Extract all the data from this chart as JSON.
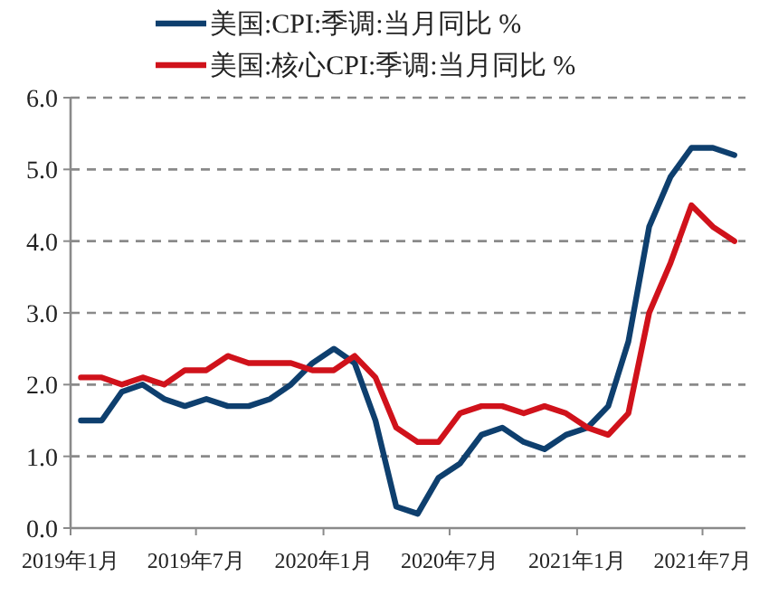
{
  "chart_data": {
    "type": "line",
    "x": [
      "2019-01-16",
      "2019-02-15",
      "2019-03-16",
      "2019-04-15",
      "2019-05-16",
      "2019-06-15",
      "2019-07-16",
      "2019-08-16",
      "2019-09-15",
      "2019-10-16",
      "2019-11-15",
      "2019-12-16",
      "2020-01-16",
      "2020-02-15",
      "2020-03-16",
      "2020-04-15",
      "2020-05-16",
      "2020-06-15",
      "2020-07-16",
      "2020-08-16",
      "2020-09-15",
      "2020-10-16",
      "2020-11-15",
      "2020-12-16",
      "2021-01-16",
      "2021-02-15",
      "2021-03-16",
      "2021-04-15",
      "2021-05-16",
      "2021-06-15",
      "2021-07-16",
      "2021-08-16"
    ],
    "series": [
      {
        "name": "美国:CPI:季调:当月同比 %",
        "color": "#0e3f6e",
        "values": [
          1.5,
          1.5,
          1.9,
          2.0,
          1.8,
          1.7,
          1.8,
          1.7,
          1.7,
          1.8,
          2.0,
          2.3,
          2.5,
          2.3,
          1.5,
          0.3,
          0.2,
          0.7,
          0.9,
          1.3,
          1.4,
          1.2,
          1.1,
          1.3,
          1.4,
          1.7,
          2.6,
          4.2,
          4.9,
          5.3,
          5.3,
          5.2
        ]
      },
      {
        "name": "美国:核心CPI:季调:当月同比 %",
        "color": "#d0121b",
        "values": [
          2.1,
          2.1,
          2.0,
          2.1,
          2.0,
          2.2,
          2.2,
          2.4,
          2.3,
          2.3,
          2.3,
          2.2,
          2.2,
          2.4,
          2.1,
          1.4,
          1.2,
          1.2,
          1.6,
          1.7,
          1.7,
          1.6,
          1.7,
          1.6,
          1.4,
          1.3,
          1.6,
          3.0,
          3.7,
          4.5,
          4.2,
          4.0
        ]
      }
    ],
    "xlim": [
      "2019-01-01",
      "2021-09-01"
    ],
    "xticks": [
      {
        "value": "2019-01-01",
        "label": "2019年1月"
      },
      {
        "value": "2019-07-01",
        "label": "2019年7月"
      },
      {
        "value": "2020-01-01",
        "label": "2020年1月"
      },
      {
        "value": "2020-07-01",
        "label": "2020年7月"
      },
      {
        "value": "2021-01-01",
        "label": "2021年1月"
      },
      {
        "value": "2021-07-01",
        "label": "2021年7月"
      }
    ],
    "ylim": [
      0,
      6
    ],
    "yticks": [
      {
        "value": 0,
        "label": "0.0"
      },
      {
        "value": 1,
        "label": "1.0"
      },
      {
        "value": 2,
        "label": "2.0"
      },
      {
        "value": 3,
        "label": "3.0"
      },
      {
        "value": 4,
        "label": "4.0"
      },
      {
        "value": 5,
        "label": "5.0"
      },
      {
        "value": 6,
        "label": "6.0"
      }
    ],
    "grid": "y",
    "legend": "top",
    "marker": "none",
    "line_style": "solid"
  }
}
